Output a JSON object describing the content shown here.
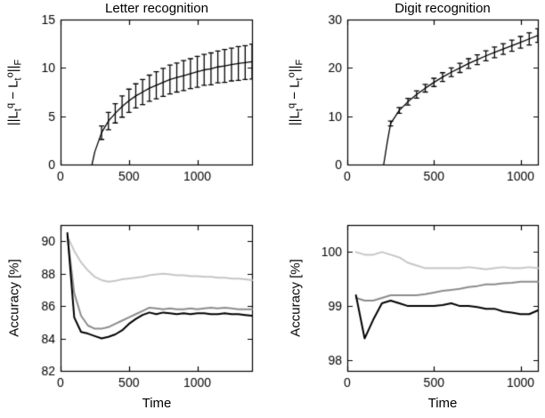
{
  "figure_colors": {
    "background": "#ffffff",
    "axis": "#000000",
    "curve_black": "#000000",
    "curve_gray": "#8c8c8c",
    "curve_light": "#c6c6c6"
  },
  "chart_data": [
    {
      "type": "line",
      "title": "Letter recognition",
      "xlabel": "",
      "ylabel": "||L_t^q - L_t^o||_F",
      "xlim": [
        0,
        1400
      ],
      "ylim": [
        0,
        15
      ],
      "xticks": [
        0,
        500,
        1000
      ],
      "yticks": [
        0,
        5,
        10,
        15
      ],
      "grid": false,
      "legend": "none",
      "series": [
        {
          "name": "mean-norm-difference-with-errorbars",
          "color": "#000000",
          "width": 1.3,
          "x": [
            230,
            250,
            300,
            350,
            400,
            450,
            500,
            550,
            600,
            650,
            700,
            750,
            800,
            850,
            900,
            950,
            1000,
            1050,
            1100,
            1150,
            1200,
            1250,
            1300,
            1350,
            1400
          ],
          "y": [
            0,
            1.3,
            3.3,
            4.5,
            5.3,
            6.0,
            6.6,
            7.1,
            7.5,
            7.9,
            8.2,
            8.5,
            8.8,
            9.0,
            9.2,
            9.4,
            9.6,
            9.8,
            9.9,
            10.1,
            10.2,
            10.35,
            10.45,
            10.55,
            10.65
          ],
          "yerr": [
            0,
            0,
            0.7,
            0.9,
            1.0,
            1.1,
            1.2,
            1.25,
            1.3,
            1.35,
            1.4,
            1.45,
            1.5,
            1.5,
            1.55,
            1.55,
            1.6,
            1.6,
            1.65,
            1.65,
            1.7,
            1.7,
            1.75,
            1.75,
            1.8
          ]
        }
      ]
    },
    {
      "type": "line",
      "title": "Digit recognition",
      "xlabel": "",
      "ylabel": "||L_t^q - L_t^o||_F",
      "xlim": [
        0,
        1100
      ],
      "ylim": [
        0,
        30
      ],
      "xticks": [
        0,
        500,
        1000
      ],
      "yticks": [
        0,
        10,
        20,
        30
      ],
      "grid": false,
      "legend": "none",
      "series": [
        {
          "name": "mean-norm-difference-with-errorbars",
          "color": "#000000",
          "width": 1.3,
          "x": [
            210,
            230,
            250,
            300,
            350,
            400,
            450,
            500,
            550,
            600,
            650,
            700,
            750,
            800,
            850,
            900,
            950,
            1000,
            1050,
            1100
          ],
          "y": [
            0,
            4.5,
            8.5,
            11.2,
            13.0,
            14.5,
            15.8,
            17.0,
            18.1,
            19.1,
            20.0,
            20.9,
            21.7,
            22.5,
            23.2,
            23.9,
            24.6,
            25.3,
            26.0,
            26.7
          ],
          "yerr": [
            0,
            0,
            0.5,
            0.6,
            0.7,
            0.75,
            0.8,
            0.85,
            0.9,
            0.9,
            0.95,
            1.0,
            1.0,
            1.05,
            1.1,
            1.1,
            1.15,
            1.2,
            1.25,
            1.4
          ]
        }
      ]
    },
    {
      "type": "line",
      "title": "",
      "xlabel": "Time",
      "ylabel": "Accuracy [%]",
      "xlim": [
        0,
        1400
      ],
      "ylim": [
        82,
        91
      ],
      "xticks": [
        0,
        500,
        1000
      ],
      "yticks": [
        82,
        84,
        86,
        88,
        90
      ],
      "grid": false,
      "legend": "none",
      "x": [
        50,
        100,
        150,
        200,
        250,
        300,
        350,
        400,
        450,
        500,
        550,
        600,
        650,
        700,
        750,
        800,
        850,
        900,
        950,
        1000,
        1050,
        1100,
        1150,
        1200,
        1250,
        1300,
        1350,
        1400
      ],
      "series": [
        {
          "name": "curve-light-gray",
          "color": "#c6c6c6",
          "width": 2,
          "y": [
            90.3,
            89.4,
            88.7,
            88.2,
            87.8,
            87.6,
            87.5,
            87.55,
            87.65,
            87.7,
            87.75,
            87.8,
            87.9,
            87.95,
            88.0,
            87.95,
            87.9,
            87.9,
            87.85,
            87.85,
            87.8,
            87.8,
            87.75,
            87.75,
            87.7,
            87.7,
            87.65,
            87.6
          ]
        },
        {
          "name": "curve-medium-gray",
          "color": "#8c8c8c",
          "width": 2,
          "y": [
            90.3,
            86.8,
            85.4,
            84.8,
            84.6,
            84.6,
            84.7,
            84.9,
            85.1,
            85.3,
            85.5,
            85.7,
            85.9,
            85.85,
            85.8,
            85.85,
            85.8,
            85.8,
            85.85,
            85.8,
            85.85,
            85.9,
            85.85,
            85.9,
            85.85,
            85.8,
            85.8,
            85.8
          ]
        },
        {
          "name": "curve-black",
          "color": "#000000",
          "width": 2,
          "y": [
            90.5,
            85.3,
            84.4,
            84.3,
            84.15,
            84.0,
            84.1,
            84.25,
            84.5,
            84.9,
            85.2,
            85.45,
            85.6,
            85.5,
            85.6,
            85.55,
            85.5,
            85.55,
            85.5,
            85.55,
            85.55,
            85.5,
            85.5,
            85.55,
            85.5,
            85.5,
            85.45,
            85.4
          ]
        }
      ]
    },
    {
      "type": "line",
      "title": "",
      "xlabel": "Time",
      "ylabel": "Accuracy [%]",
      "xlim": [
        0,
        1100
      ],
      "ylim": [
        97.8,
        100.5
      ],
      "xticks": [
        0,
        500,
        1000
      ],
      "yticks": [
        98,
        99,
        100
      ],
      "grid": false,
      "legend": "none",
      "x": [
        50,
        100,
        150,
        200,
        250,
        300,
        350,
        400,
        450,
        500,
        550,
        600,
        650,
        700,
        750,
        800,
        850,
        900,
        950,
        1000,
        1050,
        1100
      ],
      "series": [
        {
          "name": "curve-light-gray",
          "color": "#c6c6c6",
          "width": 2,
          "y": [
            100.0,
            99.95,
            99.95,
            100.0,
            99.95,
            99.9,
            99.8,
            99.75,
            99.7,
            99.7,
            99.7,
            99.7,
            99.7,
            99.72,
            99.7,
            99.68,
            99.7,
            99.72,
            99.7,
            99.7,
            99.72,
            99.7
          ]
        },
        {
          "name": "curve-medium-gray",
          "color": "#8c8c8c",
          "width": 2,
          "y": [
            99.15,
            99.1,
            99.1,
            99.15,
            99.2,
            99.2,
            99.2,
            99.2,
            99.22,
            99.25,
            99.28,
            99.3,
            99.32,
            99.35,
            99.37,
            99.4,
            99.4,
            99.42,
            99.43,
            99.45,
            99.45,
            99.45
          ]
        },
        {
          "name": "curve-black",
          "color": "#000000",
          "width": 2,
          "y": [
            99.2,
            98.4,
            98.75,
            99.05,
            99.1,
            99.05,
            99.0,
            99.0,
            99.0,
            99.0,
            99.02,
            99.05,
            99.0,
            99.0,
            98.98,
            98.95,
            98.95,
            98.9,
            98.88,
            98.85,
            98.85,
            98.92
          ]
        }
      ]
    }
  ]
}
